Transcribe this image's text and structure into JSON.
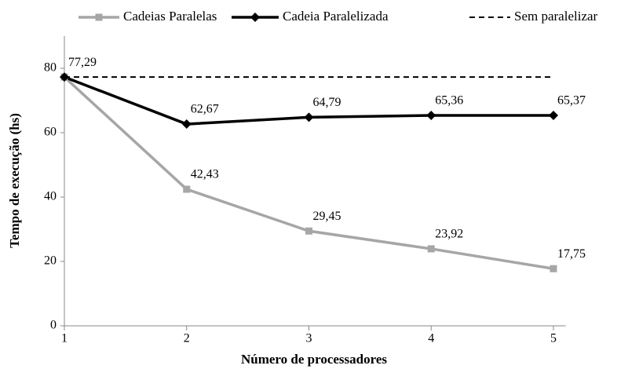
{
  "chart_data": {
    "type": "line",
    "xlabel": "Número de processadores",
    "ylabel": "Tempo de execução (hs)",
    "x": [
      1,
      2,
      3,
      4,
      5
    ],
    "xlim": [
      1,
      5.1
    ],
    "xticks": [
      1,
      2,
      3,
      4,
      5
    ],
    "ylim": [
      0,
      90
    ],
    "yticks": [
      0,
      20,
      40,
      60,
      80
    ],
    "grid": false,
    "legend": "top",
    "series": [
      {
        "name": "Cadeias Paralelas",
        "color": "#a6a6a6",
        "marker": "square",
        "dash": false,
        "values": [
          77.29,
          42.43,
          29.45,
          23.92,
          17.75
        ],
        "value_labels": [
          null,
          "42,43",
          "29,45",
          "23,92",
          "17,75"
        ]
      },
      {
        "name": "Cadeia Paralelizada",
        "color": "#000000",
        "marker": "diamond",
        "dash": false,
        "values": [
          77.29,
          62.67,
          64.79,
          65.36,
          65.37
        ],
        "value_labels": [
          "77,29",
          "62,67",
          "64,79",
          "65,36",
          "65,37"
        ]
      },
      {
        "name": "Sem paralelizar",
        "color": "#000000",
        "marker": "none",
        "dash": true,
        "values": [
          77.29,
          77.29,
          77.29,
          77.29,
          77.29
        ]
      }
    ]
  }
}
